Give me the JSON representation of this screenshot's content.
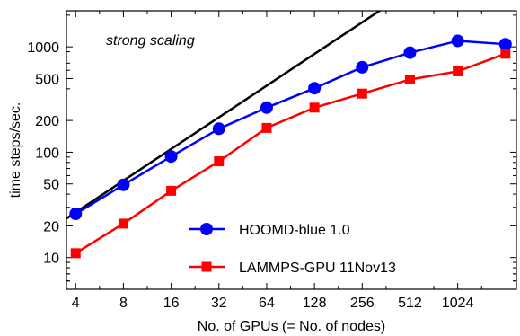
{
  "chart_data": {
    "type": "line",
    "title": "",
    "annotation": "strong scaling",
    "xlabel": "No. of GPUs (= No. of nodes)",
    "ylabel": "time steps/sec.",
    "x_scale": "log2",
    "y_scale": "log10",
    "xlim": [
      3.5,
      2400
    ],
    "ylim": [
      5,
      2200
    ],
    "x_ticks": [
      4,
      8,
      16,
      32,
      64,
      128,
      256,
      512,
      1024
    ],
    "x_tick_labels": [
      "4",
      "8",
      "16",
      "32",
      "64",
      "128",
      "256",
      "512",
      "1024"
    ],
    "y_ticks": [
      10,
      20,
      50,
      100,
      200,
      500,
      1000
    ],
    "y_tick_labels": [
      "10",
      "20",
      "50",
      "100",
      "200",
      "500",
      "1000"
    ],
    "grid": false,
    "legend_position": "bottom-center",
    "ideal_line": {
      "x": [
        3.5,
        2400
      ],
      "y": [
        23.5,
        16000
      ],
      "color": "#000000"
    },
    "series": [
      {
        "name": "HOOMD-blue 1.0",
        "marker": "circle",
        "color": "#0000ff",
        "x": [
          4,
          8,
          16,
          32,
          64,
          128,
          256,
          512,
          1024,
          2048
        ],
        "y": [
          26,
          49,
          91,
          167,
          265,
          405,
          640,
          880,
          1140,
          1060
        ]
      },
      {
        "name": "LAMMPS-GPU 11Nov13",
        "marker": "square",
        "color": "#ff0000",
        "x": [
          4,
          8,
          16,
          32,
          64,
          128,
          256,
          512,
          1024,
          2048
        ],
        "y": [
          11,
          21,
          43,
          82,
          170,
          265,
          360,
          490,
          585,
          860
        ]
      }
    ]
  }
}
